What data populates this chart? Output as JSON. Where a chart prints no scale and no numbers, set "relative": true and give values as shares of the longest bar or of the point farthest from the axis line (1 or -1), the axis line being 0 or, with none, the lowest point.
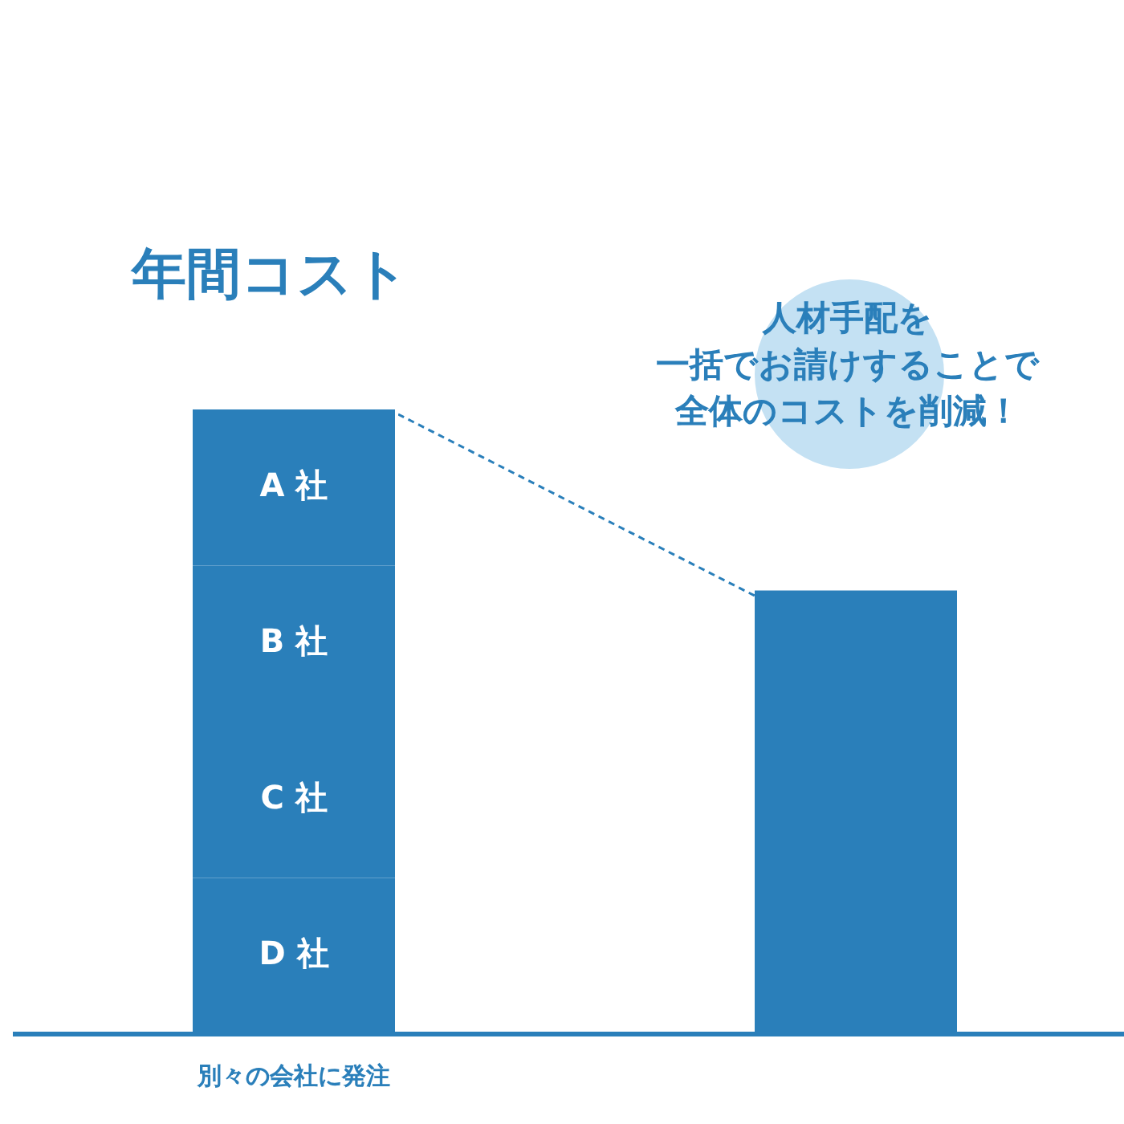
{
  "chart_data": {
    "type": "bar",
    "title": "年間コスト",
    "categories": [
      "別々の会社に発注",
      null
    ],
    "stacked": true,
    "relative": true,
    "legend": false,
    "grid": false,
    "series": [
      {
        "name": "D 社",
        "color": "#2a7fba",
        "values": [
          0.25,
          null
        ]
      },
      {
        "name": "C 社",
        "color": "#2a7fba",
        "values": [
          0.25,
          null
        ]
      },
      {
        "name": "B 社",
        "color": "#2a7fba",
        "values": [
          0.25,
          null
        ]
      },
      {
        "name": "A 社",
        "color": "#2a7fba",
        "values": [
          0.25,
          null
        ]
      },
      {
        "color": "#2a7fba",
        "values": [
          null,
          0.71
        ]
      }
    ],
    "annotations": [
      "人材手配を",
      "一括でお請けすることで",
      "全体のコストを削減！"
    ]
  }
}
